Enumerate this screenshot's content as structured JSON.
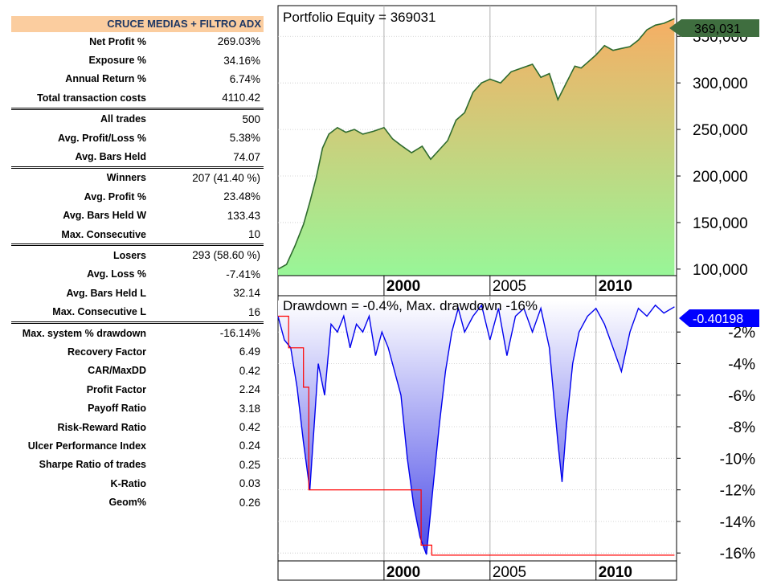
{
  "table": {
    "title": "CRUCE MEDIAS + FILTRO ADX",
    "rows": [
      {
        "label": "Net Profit %",
        "value": "269.03%",
        "sep": false
      },
      {
        "label": "Exposure %",
        "value": "34.16%",
        "sep": false
      },
      {
        "label": "Annual Return %",
        "value": "6.74%",
        "sep": false
      },
      {
        "label": "Total transaction costs",
        "value": "4110.42",
        "sep": false
      },
      {
        "label": "All trades",
        "value": "500",
        "sep": true
      },
      {
        "label": "Avg. Profit/Loss %",
        "value": "5.38%",
        "sep": false
      },
      {
        "label": "Avg. Bars Held",
        "value": "74.07",
        "sep": false
      },
      {
        "label": "Winners",
        "value": "207 (41.40 %)",
        "sep": true
      },
      {
        "label": "Avg. Profit %",
        "value": "23.48%",
        "sep": false
      },
      {
        "label": "Avg. Bars Held W",
        "value": "133.43",
        "sep": false
      },
      {
        "label": "Max. Consecutive",
        "value": "10",
        "sep": false
      },
      {
        "label": "Losers",
        "value": "293 (58.60 %)",
        "sep": true
      },
      {
        "label": "Avg. Loss %",
        "value": "-7.41%",
        "sep": false
      },
      {
        "label": "Avg. Bars Held L",
        "value": "32.14",
        "sep": false
      },
      {
        "label": "Max. Consecutive L",
        "value": "16",
        "sep": false
      },
      {
        "label": "Max. system % drawdown",
        "value": "-16.14%",
        "sep": true
      },
      {
        "label": "Recovery Factor",
        "value": "6.49",
        "sep": false
      },
      {
        "label": "CAR/MaxDD",
        "value": "0.42",
        "sep": false
      },
      {
        "label": "Profit Factor",
        "value": "2.24",
        "sep": false
      },
      {
        "label": "Payoff Ratio",
        "value": "3.18",
        "sep": false
      },
      {
        "label": "Risk-Reward Ratio",
        "value": "0.42",
        "sep": false
      },
      {
        "label": "Ulcer Performance Index",
        "value": "0.24",
        "sep": false
      },
      {
        "label": "Sharpe Ratio of trades",
        "value": "0.25",
        "sep": false
      },
      {
        "label": "K-Ratio",
        "value": "0.03",
        "sep": false
      },
      {
        "label": "Geom%",
        "value": "0.26",
        "sep": false
      }
    ]
  },
  "chart_data": [
    {
      "type": "area",
      "title": "Portfolio Equity = 369031",
      "last_value_label": "369,031",
      "x_tick_labels": [
        "2000",
        "2005",
        "2010"
      ],
      "x_ticks": [
        2000,
        2005,
        2010
      ],
      "y_tick_labels": [
        "100,000",
        "150,000",
        "200,000",
        "250,000",
        "300,000",
        "350,000"
      ],
      "xlim": [
        1995,
        2013.8
      ],
      "ylim": [
        93000,
        383000
      ],
      "colors": {
        "line": "#2e6b2e",
        "fill_top": "#f6ae64",
        "fill_bottom": "#98f698",
        "badge": "#3f6e3f"
      },
      "x": [
        1995.0,
        1995.4,
        1995.8,
        1996.2,
        1996.5,
        1996.8,
        1997.1,
        1997.4,
        1997.8,
        1998.2,
        1998.6,
        1999.0,
        1999.5,
        2000.0,
        2000.4,
        2000.8,
        2001.3,
        2001.8,
        2002.2,
        2002.6,
        2003.0,
        2003.4,
        2003.8,
        2004.2,
        2004.6,
        2005.0,
        2005.5,
        2006.0,
        2006.5,
        2007.0,
        2007.4,
        2007.8,
        2008.2,
        2008.6,
        2009.0,
        2009.3,
        2009.6,
        2010.0,
        2010.4,
        2010.8,
        2011.2,
        2011.6,
        2012.0,
        2012.4,
        2012.8,
        2013.2,
        2013.7
      ],
      "y": [
        100000,
        105000,
        125000,
        148000,
        172000,
        198000,
        230000,
        245000,
        252000,
        247000,
        250000,
        245000,
        248000,
        252000,
        240000,
        233000,
        225000,
        232000,
        218000,
        228000,
        238000,
        260000,
        268000,
        290000,
        300000,
        304000,
        300000,
        312000,
        316000,
        320000,
        306000,
        310000,
        282000,
        300000,
        318000,
        316000,
        322000,
        330000,
        340000,
        335000,
        337000,
        339000,
        346000,
        357000,
        362000,
        364000,
        369031
      ]
    },
    {
      "type": "area",
      "title": "Drawdown = -0.4%, Max. drawdown -16%",
      "last_value_label": "-0.40198",
      "x_tick_labels": [
        "2000",
        "2005",
        "2010"
      ],
      "x_ticks": [
        2000,
        2005,
        2010
      ],
      "y_ticks": [
        -2,
        -4,
        -6,
        -8,
        -10,
        -12,
        -14,
        -16
      ],
      "y_tick_labels": [
        "-2%",
        "-4%",
        "-6%",
        "-8%",
        "-10%",
        "-12%",
        "-14%",
        "-16%"
      ],
      "xlim": [
        1995,
        2013.8
      ],
      "ylim": [
        -16.5,
        0.3
      ],
      "colors": {
        "line": "#0000ee",
        "fill_top": "#ffffff",
        "fill_bottom": "#4a4ae8",
        "maxdd": "#ff0000",
        "badge": "#0000ff"
      },
      "x": [
        1995.0,
        1995.3,
        1995.6,
        1995.9,
        1996.2,
        1996.5,
        1996.7,
        1996.9,
        1997.2,
        1997.5,
        1997.8,
        1998.1,
        1998.4,
        1998.7,
        1999.0,
        1999.3,
        1999.6,
        1999.9,
        2000.2,
        2000.5,
        2000.8,
        2001.1,
        2001.4,
        2001.7,
        2002.0,
        2002.3,
        2002.6,
        2002.9,
        2003.2,
        2003.5,
        2003.8,
        2004.2,
        2004.6,
        2005.0,
        2005.4,
        2005.8,
        2006.2,
        2006.6,
        2007.0,
        2007.4,
        2007.8,
        2008.0,
        2008.2,
        2008.4,
        2008.6,
        2008.9,
        2009.2,
        2009.6,
        2010.0,
        2010.4,
        2010.8,
        2011.2,
        2011.6,
        2012.0,
        2012.4,
        2012.8,
        2013.2,
        2013.7
      ],
      "y": [
        -1.0,
        -2.5,
        -3.0,
        -5.5,
        -9.0,
        -12.0,
        -8.0,
        -4.0,
        -6.0,
        -1.5,
        -2.0,
        -1.0,
        -3.0,
        -1.5,
        -2.0,
        -1.0,
        -3.5,
        -2.0,
        -3.0,
        -4.5,
        -6.0,
        -10.0,
        -13.0,
        -15.0,
        -16.1,
        -12.0,
        -8.0,
        -4.5,
        -2.0,
        -0.5,
        -2.0,
        -1.0,
        -0.3,
        -2.5,
        -0.5,
        -3.5,
        -1.0,
        -0.5,
        -2.0,
        -0.5,
        -3.0,
        -6.0,
        -9.0,
        -11.5,
        -8.0,
        -4.0,
        -2.0,
        -1.0,
        -0.5,
        -1.5,
        -3.0,
        -4.5,
        -2.0,
        -0.5,
        -1.0,
        -0.3,
        -0.8,
        -0.4
      ],
      "maxdd_x": [
        1995.0,
        1995.5,
        1996.2,
        1996.45,
        2001.5,
        2001.75,
        2002.25,
        2013.7
      ],
      "maxdd_y": [
        -1.0,
        -3.0,
        -5.5,
        -12.0,
        -12.0,
        -15.5,
        -16.14,
        -16.14
      ]
    }
  ]
}
